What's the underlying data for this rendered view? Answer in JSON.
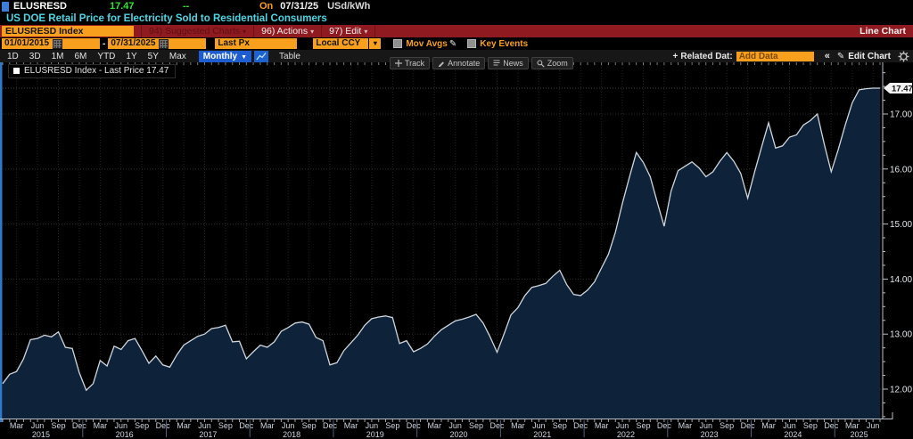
{
  "header": {
    "ticker": "ELUSRESD",
    "last_price": "17.47",
    "change": "--",
    "on_label": "On",
    "date": "07/31/25",
    "unit": "USd/kWh",
    "title": "US DOE Retail Price for Electricity Sold to Residential Consumers"
  },
  "menubar": {
    "security": "ELUSRESD Index",
    "suggested_charts": "94) Suggested Charts",
    "actions": "96) Actions",
    "edit": "97) Edit",
    "view_label": "Line Chart"
  },
  "controls": {
    "date_from": "01/01/2015",
    "date_to": "07/31/2025",
    "price_field": "Last Px",
    "currency": "Local CCY",
    "mov_avgs": "Mov Avgs",
    "key_events": "Key Events"
  },
  "toolbar": {
    "periods": [
      "1D",
      "3D",
      "1M",
      "6M",
      "YTD",
      "1Y",
      "5Y",
      "Max"
    ],
    "frequency": "Monthly",
    "table_label": "Table",
    "related_label": "Related Dat:",
    "add_data_placeholder": "Add Data",
    "collapse_label": "«",
    "edit_chart_label": "Edit Chart"
  },
  "chart_tools": {
    "track": "Track",
    "annotate": "Annotate",
    "news": "News",
    "zoom": "Zoom"
  },
  "legend": "ELUSRESD Index - Last Price 17.47",
  "last_price_badge": "17.47",
  "colors": {
    "accent_orange": "#f8a01e",
    "price_green": "#2fe62f",
    "title_cyan": "#4dd5e3",
    "menubar_red": "#8f1a20",
    "button_blue": "#1d5dd0",
    "area_fill": "#0e2239",
    "line": "#cfd6dd"
  },
  "chart_data": {
    "type": "area",
    "title": "ELUSRESD Index - Last Price",
    "unit": "USd/kWh",
    "frequency": "monthly",
    "x_start": "2015-01",
    "x_end": "2025-07",
    "last_price": 17.47,
    "ylim": [
      11.5,
      17.9
    ],
    "yticks": [
      12,
      13,
      14,
      15,
      16,
      17
    ],
    "ytick_labels": [
      "12.00",
      "13.00",
      "14.00",
      "15.00",
      "16.00",
      "17.00"
    ],
    "month_label_cycle": [
      "Mar",
      "Jun",
      "Sep",
      "Dec"
    ],
    "year_labels": [
      "2015",
      "2016",
      "2017",
      "2018",
      "2019",
      "2020",
      "2021",
      "2022",
      "2023",
      "2024",
      "2025"
    ],
    "grid": "dotted",
    "legend_position": "top-left",
    "series": [
      {
        "name": "ELUSRESD Index - Last Price",
        "values": [
          12.1,
          12.27,
          12.32,
          12.55,
          12.9,
          12.92,
          12.98,
          12.95,
          13.04,
          12.76,
          12.74,
          12.3,
          11.98,
          12.1,
          12.52,
          12.42,
          12.78,
          12.72,
          12.88,
          12.92,
          12.7,
          12.47,
          12.6,
          12.44,
          12.4,
          12.62,
          12.8,
          12.88,
          12.96,
          13.0,
          13.1,
          13.12,
          13.16,
          12.86,
          12.87,
          12.55,
          12.68,
          12.8,
          12.76,
          12.86,
          13.05,
          13.12,
          13.2,
          13.22,
          13.18,
          12.94,
          12.88,
          12.44,
          12.48,
          12.7,
          12.84,
          12.98,
          13.16,
          13.28,
          13.31,
          13.33,
          13.3,
          12.83,
          12.88,
          12.68,
          12.74,
          12.82,
          12.96,
          13.08,
          13.16,
          13.24,
          13.27,
          13.31,
          13.36,
          13.2,
          12.95,
          12.67,
          13.0,
          13.35,
          13.48,
          13.7,
          13.85,
          13.88,
          13.92,
          14.05,
          14.16,
          13.9,
          13.72,
          13.7,
          13.8,
          13.95,
          14.2,
          14.45,
          14.85,
          15.37,
          15.85,
          16.3,
          16.12,
          15.86,
          15.4,
          14.96,
          15.6,
          15.97,
          16.05,
          16.13,
          16.02,
          15.86,
          15.95,
          16.14,
          16.3,
          16.14,
          15.92,
          15.47,
          15.95,
          16.4,
          16.84,
          16.38,
          16.42,
          16.58,
          16.62,
          16.8,
          16.88,
          17.0,
          16.45,
          15.95,
          16.35,
          16.8,
          17.2,
          17.44,
          17.46,
          17.47,
          17.47
        ]
      }
    ]
  }
}
